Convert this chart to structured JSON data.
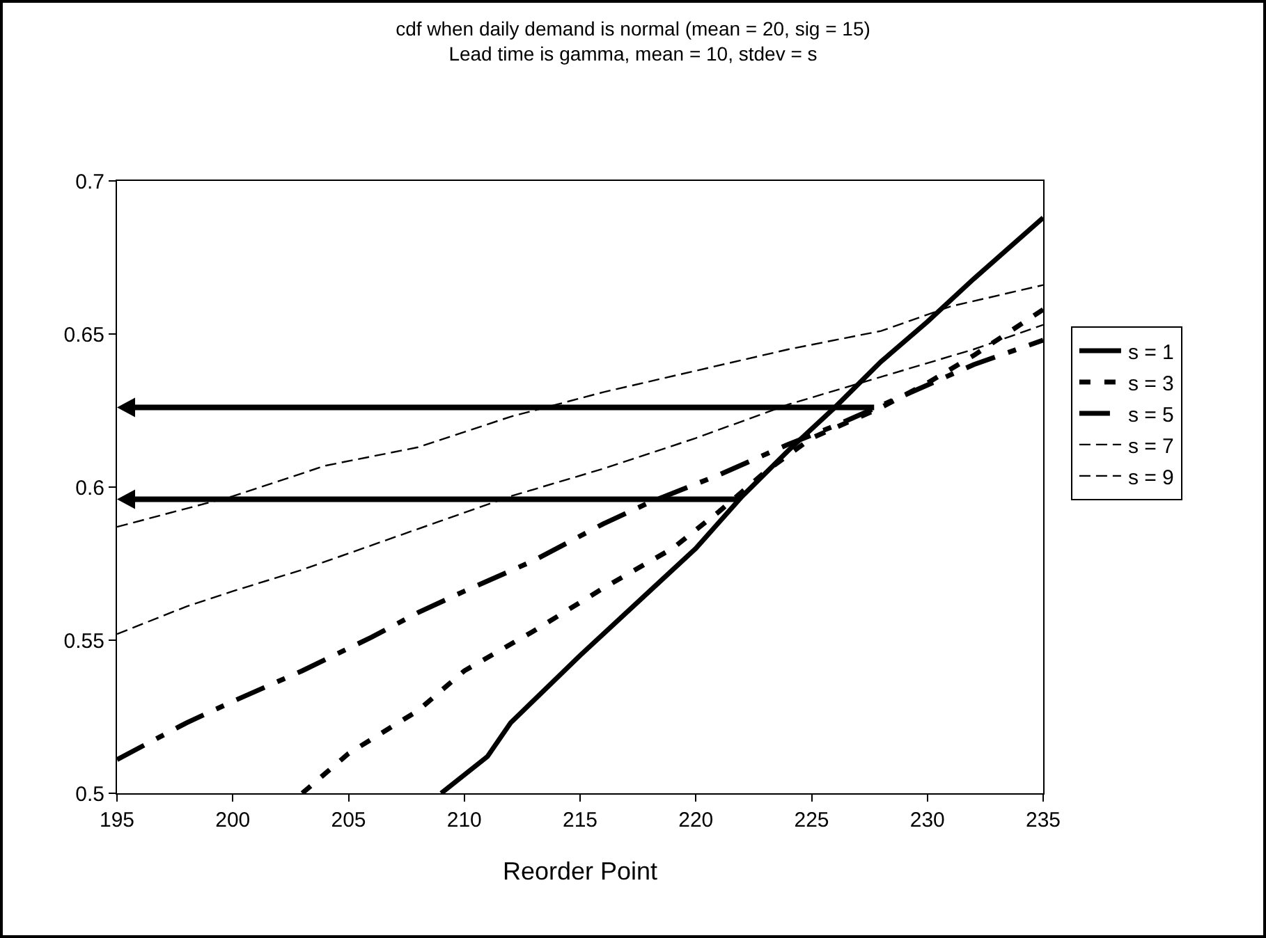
{
  "chart_data": {
    "type": "line",
    "title": "cdf when daily demand is normal (mean = 20, sig = 15)\nLead time is gamma, mean = 10, stdev = s",
    "xlabel": "Reorder Point",
    "xlim": [
      195,
      235
    ],
    "xticks": [
      195,
      200,
      205,
      210,
      215,
      220,
      225,
      230,
      235
    ],
    "ylim": [
      0.5,
      0.7
    ],
    "yticks": [
      0.5,
      0.55,
      0.6,
      0.65,
      0.7
    ],
    "grid": false,
    "legend": "right",
    "marker": "none",
    "series": [
      {
        "name": "s = 1",
        "color": "#000000",
        "line_style": "solid",
        "x": [
          209,
          211,
          212,
          215,
          218,
          220,
          222,
          224,
          226,
          228,
          230,
          232,
          235
        ],
        "values": [
          0.5,
          0.512,
          0.523,
          0.545,
          0.566,
          0.58,
          0.597,
          0.612,
          0.626,
          0.641,
          0.654,
          0.668,
          0.688
        ]
      },
      {
        "name": "s = 3",
        "color": "#000000",
        "line_style": "dotted",
        "x": [
          203,
          205,
          208,
          210,
          213,
          216,
          219,
          221,
          223,
          225,
          228,
          230,
          232,
          235
        ],
        "values": [
          0.5,
          0.513,
          0.527,
          0.54,
          0.553,
          0.567,
          0.58,
          0.592,
          0.605,
          0.616,
          0.626,
          0.634,
          0.643,
          0.658
        ]
      },
      {
        "name": "s = 5",
        "color": "#000000",
        "line_style": "dashed",
        "x": [
          195,
          198,
          200,
          203,
          206,
          208,
          210,
          213,
          216,
          218,
          221,
          224,
          226,
          229,
          232,
          235
        ],
        "values": [
          0.511,
          0.523,
          0.53,
          0.54,
          0.551,
          0.559,
          0.566,
          0.576,
          0.588,
          0.595,
          0.604,
          0.614,
          0.62,
          0.63,
          0.64,
          0.648
        ]
      },
      {
        "name": "s = 7",
        "color": "#000000",
        "line_style": "dashed",
        "x": [
          195,
          200,
          204,
          208,
          212,
          216,
          220,
          224,
          228,
          231,
          235
        ],
        "values": [
          0.587,
          0.597,
          0.607,
          0.613,
          0.623,
          0.631,
          0.638,
          0.645,
          0.651,
          0.659,
          0.666
        ]
      },
      {
        "name": "s = 9",
        "color": "#000000",
        "line_style": "dashed",
        "x": [
          195,
          198,
          200,
          203,
          206,
          209,
          212,
          216,
          220,
          224,
          228,
          232,
          235
        ],
        "values": [
          0.552,
          0.561,
          0.566,
          0.573,
          0.581,
          0.589,
          0.597,
          0.606,
          0.616,
          0.627,
          0.636,
          0.645,
          0.653
        ]
      }
    ]
  }
}
